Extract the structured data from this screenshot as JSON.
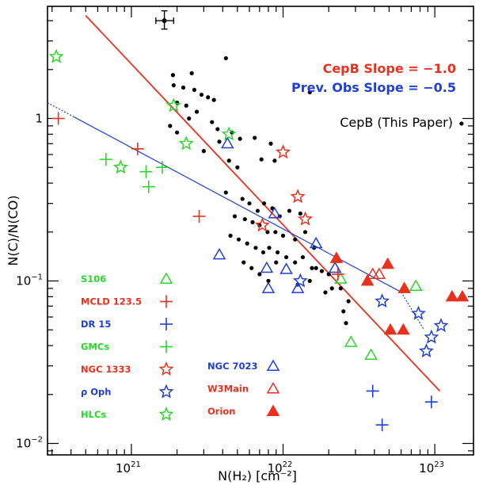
{
  "chart_data": {
    "type": "scatter",
    "title": "",
    "xlabel": "N(H₂) [cm⁻²]",
    "ylabel": "N(C)/N(CO)",
    "x_scale": "log",
    "y_scale": "log",
    "xlim": [
      2.8e+20,
      1.8e+23
    ],
    "ylim": [
      0.0085,
      4.9
    ],
    "x_tick_labels": [
      {
        "value": 1e+21,
        "base": "10",
        "exp": "21"
      },
      {
        "value": 1e+22,
        "base": "10",
        "exp": "22"
      },
      {
        "value": 1e+23,
        "base": "10",
        "exp": "23"
      }
    ],
    "y_tick_labels": [
      {
        "value": 1,
        "text": "1"
      },
      {
        "value": 0.1,
        "base": "10",
        "exp": "−1"
      },
      {
        "value": 0.01,
        "base": "10",
        "exp": "−2"
      }
    ],
    "slope_labels": [
      {
        "text": "CepB Slope = −1.0",
        "color": "#e8321e"
      },
      {
        "text": "Prev. Obs Slope = −0.5",
        "color": "#1f3fd6"
      }
    ],
    "fit_lines": [
      {
        "name": "CepB fit",
        "color": "#e8321e",
        "points": [
          [
            5e+20,
            4.3
          ],
          [
            1.08e+23,
            0.021
          ]
        ]
      },
      {
        "name": "Previous observations fit",
        "color": "#1f3fd6",
        "points": [
          [
            2.8e+20,
            1.25
          ],
          [
            8.5e+22,
            0.05
          ]
        ]
      }
    ],
    "error_bar": {
      "x": 1.65e+21,
      "y": 4.0,
      "x_err": [
        1.45e+21,
        1.9e+21
      ],
      "y_err": [
        3.55,
        4.6
      ]
    },
    "series": [
      {
        "name": "CepB (This Paper)",
        "marker": "dot",
        "color": "#000000",
        "points": [
          [
            1.5e+23,
            0.93
          ],
          [
            2.5e+21,
            1.9
          ],
          [
            4.2e+21,
            2.35
          ],
          [
            1.88e+21,
            1.85
          ],
          [
            1.9e+21,
            1.6
          ],
          [
            2.2e+21,
            1.55
          ],
          [
            2.6e+21,
            1.5
          ],
          [
            2.9e+21,
            1.4
          ],
          [
            3.2e+21,
            1.35
          ],
          [
            3.5e+21,
            1.3
          ],
          [
            2e+21,
            1.25
          ],
          [
            2.3e+21,
            1.2
          ],
          [
            2.7e+21,
            1.1
          ],
          [
            2.4e+21,
            1.0
          ],
          [
            1.8e+21,
            0.9
          ],
          [
            2e+21,
            0.82
          ],
          [
            3.4e+21,
            0.95
          ],
          [
            3.7e+21,
            0.86
          ],
          [
            4.6e+21,
            0.82
          ],
          [
            5.2e+21,
            0.75
          ],
          [
            6.5e+21,
            0.76
          ],
          [
            3.8e+21,
            0.72
          ],
          [
            8.3e+21,
            0.7
          ],
          [
            3e+21,
            0.63
          ],
          [
            4.4e+21,
            0.55
          ],
          [
            5e+21,
            0.5
          ],
          [
            7.2e+21,
            0.56
          ],
          [
            8.8e+21,
            0.55
          ],
          [
            1.5e+22,
            1.45
          ],
          [
            4.2e+21,
            0.35
          ],
          [
            5.4e+21,
            0.32
          ],
          [
            6e+21,
            0.3
          ],
          [
            6.8e+21,
            0.27
          ],
          [
            7.5e+21,
            0.3
          ],
          [
            8.5e+21,
            0.28
          ],
          [
            9.5e+21,
            0.25
          ],
          [
            1.1e+22,
            0.27
          ],
          [
            1.3e+22,
            0.26
          ],
          [
            4.8e+21,
            0.25
          ],
          [
            5.6e+21,
            0.24
          ],
          [
            6.3e+21,
            0.23
          ],
          [
            7e+21,
            0.22
          ],
          [
            7.9e+21,
            0.2
          ],
          [
            8.9e+21,
            0.2
          ],
          [
            1e+22,
            0.19
          ],
          [
            1.2e+22,
            0.18
          ],
          [
            1.4e+22,
            0.2
          ],
          [
            1.6e+22,
            0.16
          ],
          [
            4.5e+21,
            0.19
          ],
          [
            5.1e+21,
            0.18
          ],
          [
            5.8e+21,
            0.17
          ],
          [
            6.6e+21,
            0.16
          ],
          [
            7.4e+21,
            0.15
          ],
          [
            8.1e+21,
            0.16
          ],
          [
            9.2e+21,
            0.15
          ],
          [
            1.05e+22,
            0.14
          ],
          [
            1.2e+22,
            0.13
          ],
          [
            1.35e+22,
            0.14
          ],
          [
            1.55e+22,
            0.12
          ],
          [
            1.8e+22,
            0.115
          ],
          [
            5.5e+21,
            0.13
          ],
          [
            6.2e+21,
            0.12
          ],
          [
            7e+21,
            0.11
          ],
          [
            8e+21,
            0.1
          ],
          [
            9e+21,
            0.13
          ],
          [
            1.25e+22,
            0.095
          ],
          [
            1.5e+22,
            0.1
          ],
          [
            1.9e+22,
            0.085
          ],
          [
            2.1e+22,
            0.09
          ],
          [
            2.4e+22,
            0.09
          ],
          [
            2.7e+22,
            0.075
          ],
          [
            2.5e+22,
            0.065
          ],
          [
            2.6e+22,
            0.055
          ],
          [
            1.65e+22,
            0.12
          ],
          [
            2e+22,
            0.11
          ]
        ]
      },
      {
        "name": "S106",
        "marker": "triangle",
        "color": "#2bd62b",
        "points": [
          [
            7.5e+22,
            0.093
          ],
          [
            2.4e+22,
            0.103
          ],
          [
            2.8e+22,
            0.042
          ],
          [
            3.8e+22,
            0.035
          ]
        ]
      },
      {
        "name": "MCLD 123.5",
        "marker": "plus",
        "color": "#e8321e",
        "points": [
          [
            3.3e+20,
            1.0
          ],
          [
            1.1e+21,
            0.65
          ],
          [
            2.8e+21,
            0.25
          ],
          [
            2.3e+22,
            0.11
          ]
        ]
      },
      {
        "name": "DR 15",
        "marker": "plus",
        "color": "#1f3fd6",
        "points": [
          [
            3.9e+22,
            0.021
          ],
          [
            4.5e+22,
            0.013
          ],
          [
            9.5e+22,
            0.018
          ]
        ]
      },
      {
        "name": "GMCs",
        "marker": "plus",
        "color": "#2bd62b",
        "points": [
          [
            6.8e+20,
            0.56
          ],
          [
            1.25e+21,
            0.47
          ],
          [
            1.3e+21,
            0.38
          ],
          [
            1.6e+21,
            0.5
          ]
        ]
      },
      {
        "name": "NGC 1333",
        "marker": "star",
        "color": "#e8321e",
        "points": [
          [
            1e+22,
            0.62
          ],
          [
            1.25e+22,
            0.33
          ],
          [
            1.4e+22,
            0.24
          ],
          [
            7.3e+21,
            0.22
          ]
        ]
      },
      {
        "name": "ρ Oph",
        "marker": "star",
        "color": "#1f3fd6",
        "points": [
          [
            1.3e+22,
            0.1
          ],
          [
            4.5e+22,
            0.075
          ],
          [
            7.8e+22,
            0.063
          ],
          [
            9.5e+22,
            0.045
          ],
          [
            8.8e+22,
            0.037
          ],
          [
            1.1e+23,
            0.053
          ]
        ]
      },
      {
        "name": "HLCs",
        "marker": "star",
        "color": "#2bd62b",
        "points": [
          [
            3.2e+20,
            2.4
          ],
          [
            1.9e+21,
            1.2
          ],
          [
            2.3e+21,
            0.7
          ],
          [
            4.4e+21,
            0.8
          ],
          [
            8.5e+20,
            0.5
          ]
        ]
      },
      {
        "name": "NGC 7023",
        "marker": "triangle",
        "color": "#1f3fd6",
        "points": [
          [
            3.8e+21,
            0.145
          ],
          [
            4.3e+21,
            0.7
          ],
          [
            7.8e+21,
            0.12
          ],
          [
            8e+21,
            0.09
          ],
          [
            8.8e+21,
            0.26
          ],
          [
            1.05e+22,
            0.118
          ],
          [
            1.25e+22,
            0.09
          ],
          [
            1.65e+22,
            0.17
          ],
          [
            2.2e+22,
            0.12
          ]
        ]
      },
      {
        "name": "W3Main",
        "marker": "triangle",
        "color": "#e8321e",
        "points": [
          [
            3.9e+22,
            0.11
          ],
          [
            4.3e+22,
            0.11
          ]
        ]
      },
      {
        "name": "Orion",
        "marker": "triangle-filled",
        "color": "#e8321e",
        "points": [
          [
            2.25e+22,
            0.138
          ],
          [
            3.6e+22,
            0.1
          ],
          [
            4.9e+22,
            0.127
          ],
          [
            5.1e+22,
            0.05
          ],
          [
            6.2e+22,
            0.05
          ],
          [
            6.3e+22,
            0.09
          ],
          [
            1.3e+23,
            0.08
          ],
          [
            1.52e+23,
            0.08
          ]
        ]
      }
    ],
    "legend_left": [
      {
        "text": "S106",
        "marker": "triangle",
        "color": "#2bd62b"
      },
      {
        "text": "MCLD 123.5",
        "marker": "plus",
        "color": "#e8321e"
      },
      {
        "text": "DR 15",
        "marker": "plus",
        "color": "#1f3fd6"
      },
      {
        "text": "GMCs",
        "marker": "plus",
        "color": "#2bd62b"
      },
      {
        "text": "NGC 1333",
        "marker": "star",
        "color": "#e8321e"
      },
      {
        "text": "ρ Oph",
        "marker": "star",
        "color": "#1f3fd6"
      },
      {
        "text": "HLCs",
        "marker": "star",
        "color": "#2bd62b"
      }
    ],
    "legend_right": [
      {
        "text": "NGC 7023",
        "marker": "triangle",
        "color": "#1f3fd6"
      },
      {
        "text": "W3Main",
        "marker": "triangle",
        "color": "#e8321e"
      },
      {
        "text": "Orion",
        "marker": "triangle-filled",
        "color": "#e8321e"
      }
    ],
    "cepb_legend": {
      "text": "CepB (This Paper)",
      "color": "#000000"
    }
  }
}
